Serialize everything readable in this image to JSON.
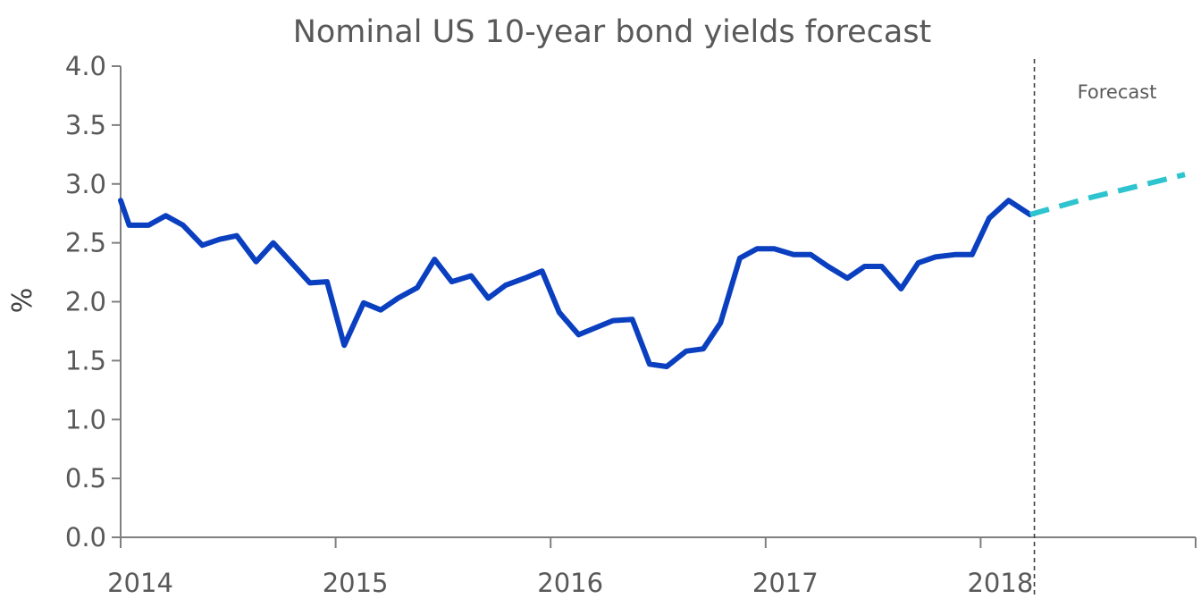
{
  "chart_data": {
    "type": "line",
    "title": "Nominal US 10-year bond yields forecast",
    "xlabel": "",
    "ylabel": "%",
    "x_tick_labels": [
      "2014",
      "2015",
      "2016",
      "2017",
      "2018"
    ],
    "x_ticks": [
      2014,
      2015,
      2016,
      2017,
      2018
    ],
    "xlim": [
      2014,
      2019
    ],
    "ylim": [
      0,
      4
    ],
    "y_ticks": [
      0.0,
      0.5,
      1.0,
      1.5,
      2.0,
      2.5,
      3.0,
      3.5,
      4.0
    ],
    "y_tick_labels": [
      "0.0",
      "0.5",
      "1.0",
      "1.5",
      "2.0",
      "2.5",
      "3.0",
      "3.5",
      "4.0"
    ],
    "grid": false,
    "legend": "none",
    "forecast_start": 2018.25,
    "annotation": "Forecast",
    "series": [
      {
        "style": "solid",
        "color": "#0a3fbf",
        "x": [
          2014.0,
          2014.04,
          2014.13,
          2014.21,
          2014.29,
          2014.38,
          2014.46,
          2014.54,
          2014.63,
          2014.71,
          2014.79,
          2014.88,
          2014.96,
          2015.04,
          2015.13,
          2015.21,
          2015.29,
          2015.38,
          2015.46,
          2015.54,
          2015.63,
          2015.71,
          2015.79,
          2015.88,
          2015.96,
          2016.04,
          2016.13,
          2016.21,
          2016.29,
          2016.38,
          2016.46,
          2016.54,
          2016.63,
          2016.71,
          2016.79,
          2016.88,
          2016.96,
          2017.04,
          2017.13,
          2017.21,
          2017.29,
          2017.38,
          2017.46,
          2017.54,
          2017.63,
          2017.71,
          2017.79,
          2017.88,
          2017.96,
          2018.04,
          2018.13,
          2018.23
        ],
        "y": [
          2.86,
          2.65,
          2.65,
          2.73,
          2.65,
          2.48,
          2.53,
          2.56,
          2.34,
          2.5,
          2.34,
          2.16,
          2.17,
          1.63,
          1.99,
          1.93,
          2.03,
          2.12,
          2.36,
          2.17,
          2.22,
          2.03,
          2.14,
          2.2,
          2.26,
          1.91,
          1.72,
          1.78,
          1.84,
          1.85,
          1.47,
          1.45,
          1.58,
          1.6,
          1.82,
          2.37,
          2.45,
          2.45,
          2.4,
          2.4,
          2.3,
          2.2,
          2.3,
          2.3,
          2.11,
          2.33,
          2.38,
          2.4,
          2.4,
          2.71,
          2.86,
          2.74
        ]
      },
      {
        "style": "dashed",
        "color": "#2ec4cf",
        "x": [
          2018.23,
          2018.5,
          2018.75,
          2018.95
        ],
        "y": [
          2.74,
          2.88,
          2.99,
          3.08
        ]
      }
    ]
  }
}
